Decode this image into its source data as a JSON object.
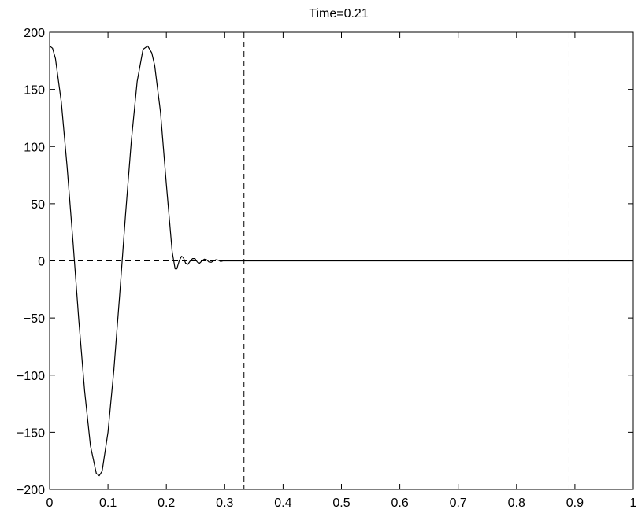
{
  "chart_data": {
    "type": "line",
    "title": "Time=0.21",
    "xlabel": "",
    "ylabel": "",
    "xlim": [
      0,
      1
    ],
    "ylim": [
      -200,
      200
    ],
    "x_ticks": [
      0,
      0.1,
      0.2,
      0.3,
      0.4,
      0.5,
      0.6,
      0.7,
      0.8,
      0.9,
      1
    ],
    "x_tick_labels": [
      "0",
      "0.1",
      "0.2",
      "0.3",
      "0.4",
      "0.5",
      "0.6",
      "0.7",
      "0.8",
      "0.9",
      "1"
    ],
    "y_ticks": [
      -200,
      -150,
      -100,
      -50,
      0,
      50,
      100,
      150,
      200
    ],
    "y_tick_labels": [
      "−200",
      "−150",
      "−100",
      "−50",
      "0",
      "50",
      "100",
      "150",
      "200"
    ],
    "grid": false,
    "series": [
      {
        "style": "solid",
        "color": "#000000",
        "x": [
          0,
          0.005,
          0.01,
          0.02,
          0.03,
          0.04,
          0.05,
          0.06,
          0.07,
          0.08,
          0.085,
          0.09,
          0.1,
          0.11,
          0.12,
          0.13,
          0.14,
          0.15,
          0.16,
          0.168,
          0.175,
          0.18,
          0.19,
          0.2,
          0.21,
          0.215,
          0.218,
          0.222,
          0.226,
          0.229,
          0.233,
          0.237,
          0.241,
          0.245,
          0.249,
          0.253,
          0.257,
          0.261,
          0.265,
          0.269,
          0.273,
          0.277,
          0.281,
          0.285,
          0.289,
          0.293,
          0.297,
          0.3,
          1
        ],
        "y": [
          188,
          186,
          177,
          139,
          82,
          17,
          -52,
          -114,
          -162,
          -186,
          -188,
          -184,
          -150,
          -96,
          -30,
          40,
          105,
          157,
          185,
          188,
          182,
          171,
          130,
          67,
          8,
          -7,
          -7,
          0,
          4,
          3,
          -2,
          -3,
          0,
          2,
          2,
          -1,
          -2,
          0,
          1.5,
          1,
          -1,
          -1.2,
          0,
          1,
          0.6,
          -0.5,
          0,
          0,
          0
        ]
      }
    ],
    "reference_lines": [
      {
        "orientation": "horizontal",
        "value": 0,
        "style": "dashed",
        "color": "#000000"
      },
      {
        "orientation": "vertical",
        "value": 0.333,
        "style": "dashed",
        "color": "#000000"
      },
      {
        "orientation": "vertical",
        "value": 0.89,
        "style": "dashed",
        "color": "#000000"
      }
    ]
  }
}
